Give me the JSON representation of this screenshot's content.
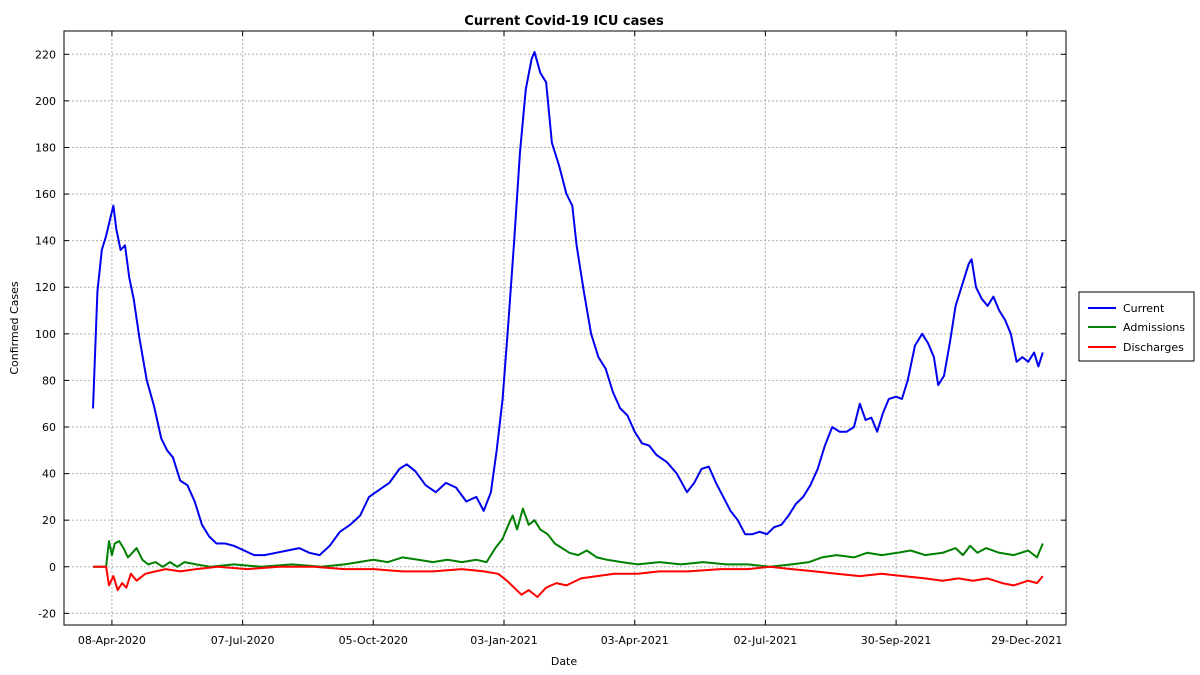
{
  "chart_data": {
    "type": "line",
    "title": "Current Covid-19 ICU cases",
    "xlabel": "Date",
    "ylabel": "Confirmed Cases",
    "x_axis": "date",
    "xlim": [
      "2020-03-06",
      "2022-01-25"
    ],
    "ylim": [
      -25,
      230
    ],
    "yticks": [
      -20,
      0,
      20,
      40,
      60,
      80,
      100,
      120,
      140,
      160,
      180,
      200,
      220
    ],
    "xticks": [
      {
        "date": "2020-04-08",
        "label": "08-Apr-2020"
      },
      {
        "date": "2020-07-07",
        "label": "07-Jul-2020"
      },
      {
        "date": "2020-10-05",
        "label": "05-Oct-2020"
      },
      {
        "date": "2021-01-03",
        "label": "03-Jan-2021"
      },
      {
        "date": "2021-04-03",
        "label": "03-Apr-2021"
      },
      {
        "date": "2021-07-02",
        "label": "02-Jul-2021"
      },
      {
        "date": "2021-09-30",
        "label": "30-Sep-2021"
      },
      {
        "date": "2021-12-29",
        "label": "29-Dec-2021"
      }
    ],
    "grid": true,
    "legend_position": "right",
    "series": [
      {
        "name": "Current",
        "color": "#0000ee",
        "points": [
          [
            "2020-03-26",
            68
          ],
          [
            "2020-03-29",
            118
          ],
          [
            "2020-04-01",
            136
          ],
          [
            "2020-04-04",
            142
          ],
          [
            "2020-04-07",
            150
          ],
          [
            "2020-04-09",
            155
          ],
          [
            "2020-04-11",
            145
          ],
          [
            "2020-04-14",
            136
          ],
          [
            "2020-04-17",
            138
          ],
          [
            "2020-04-20",
            124
          ],
          [
            "2020-04-23",
            115
          ],
          [
            "2020-04-27",
            98
          ],
          [
            "2020-05-02",
            80
          ],
          [
            "2020-05-07",
            69
          ],
          [
            "2020-05-12",
            55
          ],
          [
            "2020-05-16",
            50
          ],
          [
            "2020-05-20",
            47
          ],
          [
            "2020-05-25",
            37
          ],
          [
            "2020-05-30",
            35
          ],
          [
            "2020-06-04",
            28
          ],
          [
            "2020-06-09",
            18
          ],
          [
            "2020-06-14",
            13
          ],
          [
            "2020-06-19",
            10
          ],
          [
            "2020-06-25",
            10
          ],
          [
            "2020-07-01",
            9
          ],
          [
            "2020-07-08",
            7
          ],
          [
            "2020-07-15",
            5
          ],
          [
            "2020-07-22",
            5
          ],
          [
            "2020-07-30",
            6
          ],
          [
            "2020-08-07",
            7
          ],
          [
            "2020-08-15",
            8
          ],
          [
            "2020-08-22",
            6
          ],
          [
            "2020-08-29",
            5
          ],
          [
            "2020-09-05",
            9
          ],
          [
            "2020-09-12",
            15
          ],
          [
            "2020-09-19",
            18
          ],
          [
            "2020-09-26",
            22
          ],
          [
            "2020-10-02",
            30
          ],
          [
            "2020-10-09",
            33
          ],
          [
            "2020-10-16",
            36
          ],
          [
            "2020-10-23",
            42
          ],
          [
            "2020-10-28",
            44
          ],
          [
            "2020-11-03",
            41
          ],
          [
            "2020-11-10",
            35
          ],
          [
            "2020-11-17",
            32
          ],
          [
            "2020-11-24",
            36
          ],
          [
            "2020-12-01",
            34
          ],
          [
            "2020-12-08",
            28
          ],
          [
            "2020-12-15",
            30
          ],
          [
            "2020-12-20",
            24
          ],
          [
            "2020-12-25",
            32
          ],
          [
            "2020-12-29",
            50
          ],
          [
            "2021-01-02",
            72
          ],
          [
            "2021-01-06",
            105
          ],
          [
            "2021-01-10",
            140
          ],
          [
            "2021-01-14",
            178
          ],
          [
            "2021-01-18",
            205
          ],
          [
            "2021-01-22",
            218
          ],
          [
            "2021-01-24",
            221
          ],
          [
            "2021-01-28",
            212
          ],
          [
            "2021-02-01",
            208
          ],
          [
            "2021-02-05",
            182
          ],
          [
            "2021-02-10",
            172
          ],
          [
            "2021-02-15",
            160
          ],
          [
            "2021-02-19",
            155
          ],
          [
            "2021-02-22",
            138
          ],
          [
            "2021-02-27",
            118
          ],
          [
            "2021-03-04",
            100
          ],
          [
            "2021-03-09",
            90
          ],
          [
            "2021-03-14",
            85
          ],
          [
            "2021-03-19",
            75
          ],
          [
            "2021-03-24",
            68
          ],
          [
            "2021-03-29",
            65
          ],
          [
            "2021-04-03",
            58
          ],
          [
            "2021-04-08",
            53
          ],
          [
            "2021-04-13",
            52
          ],
          [
            "2021-04-18",
            48
          ],
          [
            "2021-04-25",
            45
          ],
          [
            "2021-05-02",
            40
          ],
          [
            "2021-05-09",
            32
          ],
          [
            "2021-05-14",
            36
          ],
          [
            "2021-05-19",
            42
          ],
          [
            "2021-05-24",
            43
          ],
          [
            "2021-05-29",
            36
          ],
          [
            "2021-06-03",
            30
          ],
          [
            "2021-06-08",
            24
          ],
          [
            "2021-06-13",
            20
          ],
          [
            "2021-06-18",
            14
          ],
          [
            "2021-06-23",
            14
          ],
          [
            "2021-06-28",
            15
          ],
          [
            "2021-07-03",
            14
          ],
          [
            "2021-07-08",
            17
          ],
          [
            "2021-07-13",
            18
          ],
          [
            "2021-07-18",
            22
          ],
          [
            "2021-07-23",
            27
          ],
          [
            "2021-07-28",
            30
          ],
          [
            "2021-08-02",
            35
          ],
          [
            "2021-08-07",
            42
          ],
          [
            "2021-08-12",
            52
          ],
          [
            "2021-08-17",
            60
          ],
          [
            "2021-08-22",
            58
          ],
          [
            "2021-08-27",
            58
          ],
          [
            "2021-09-01",
            60
          ],
          [
            "2021-09-05",
            70
          ],
          [
            "2021-09-09",
            63
          ],
          [
            "2021-09-13",
            64
          ],
          [
            "2021-09-17",
            58
          ],
          [
            "2021-09-21",
            66
          ],
          [
            "2021-09-25",
            72
          ],
          [
            "2021-09-30",
            73
          ],
          [
            "2021-10-04",
            72
          ],
          [
            "2021-10-08",
            80
          ],
          [
            "2021-10-13",
            95
          ],
          [
            "2021-10-18",
            100
          ],
          [
            "2021-10-22",
            96
          ],
          [
            "2021-10-26",
            90
          ],
          [
            "2021-10-29",
            78
          ],
          [
            "2021-11-02",
            82
          ],
          [
            "2021-11-06",
            96
          ],
          [
            "2021-11-10",
            112
          ],
          [
            "2021-11-15",
            122
          ],
          [
            "2021-11-19",
            130
          ],
          [
            "2021-11-21",
            132
          ],
          [
            "2021-11-24",
            120
          ],
          [
            "2021-11-28",
            115
          ],
          [
            "2021-12-02",
            112
          ],
          [
            "2021-12-06",
            116
          ],
          [
            "2021-12-10",
            110
          ],
          [
            "2021-12-14",
            106
          ],
          [
            "2021-12-18",
            100
          ],
          [
            "2021-12-22",
            88
          ],
          [
            "2021-12-26",
            90
          ],
          [
            "2021-12-30",
            88
          ],
          [
            "2022-01-03",
            92
          ],
          [
            "2022-01-06",
            86
          ],
          [
            "2022-01-09",
            92
          ]
        ]
      },
      {
        "name": "Admissions",
        "color": "#008000",
        "points": [
          [
            "2020-03-26",
            0
          ],
          [
            "2020-04-04",
            0
          ],
          [
            "2020-04-06",
            11
          ],
          [
            "2020-04-08",
            5
          ],
          [
            "2020-04-10",
            10
          ],
          [
            "2020-04-13",
            11
          ],
          [
            "2020-04-16",
            8
          ],
          [
            "2020-04-19",
            4
          ],
          [
            "2020-04-22",
            6
          ],
          [
            "2020-04-25",
            8
          ],
          [
            "2020-04-29",
            3
          ],
          [
            "2020-05-03",
            1
          ],
          [
            "2020-05-08",
            2
          ],
          [
            "2020-05-13",
            0
          ],
          [
            "2020-05-18",
            2
          ],
          [
            "2020-05-23",
            0
          ],
          [
            "2020-05-28",
            2
          ],
          [
            "2020-06-05",
            1
          ],
          [
            "2020-06-15",
            0
          ],
          [
            "2020-07-01",
            1
          ],
          [
            "2020-07-20",
            0
          ],
          [
            "2020-08-10",
            1
          ],
          [
            "2020-08-30",
            0
          ],
          [
            "2020-09-15",
            1
          ],
          [
            "2020-09-25",
            2
          ],
          [
            "2020-10-05",
            3
          ],
          [
            "2020-10-15",
            2
          ],
          [
            "2020-10-25",
            4
          ],
          [
            "2020-11-05",
            3
          ],
          [
            "2020-11-15",
            2
          ],
          [
            "2020-11-25",
            3
          ],
          [
            "2020-12-05",
            2
          ],
          [
            "2020-12-15",
            3
          ],
          [
            "2020-12-22",
            2
          ],
          [
            "2020-12-28",
            8
          ],
          [
            "2021-01-02",
            12
          ],
          [
            "2021-01-06",
            18
          ],
          [
            "2021-01-09",
            22
          ],
          [
            "2021-01-12",
            16
          ],
          [
            "2021-01-16",
            25
          ],
          [
            "2021-01-20",
            18
          ],
          [
            "2021-01-24",
            20
          ],
          [
            "2021-01-28",
            16
          ],
          [
            "2021-02-02",
            14
          ],
          [
            "2021-02-07",
            10
          ],
          [
            "2021-02-12",
            8
          ],
          [
            "2021-02-17",
            6
          ],
          [
            "2021-02-23",
            5
          ],
          [
            "2021-03-01",
            7
          ],
          [
            "2021-03-08",
            4
          ],
          [
            "2021-03-15",
            3
          ],
          [
            "2021-03-25",
            2
          ],
          [
            "2021-04-05",
            1
          ],
          [
            "2021-04-20",
            2
          ],
          [
            "2021-05-05",
            1
          ],
          [
            "2021-05-20",
            2
          ],
          [
            "2021-06-05",
            1
          ],
          [
            "2021-06-20",
            1
          ],
          [
            "2021-07-05",
            0
          ],
          [
            "2021-07-20",
            1
          ],
          [
            "2021-08-01",
            2
          ],
          [
            "2021-08-10",
            4
          ],
          [
            "2021-08-20",
            5
          ],
          [
            "2021-09-01",
            4
          ],
          [
            "2021-09-10",
            6
          ],
          [
            "2021-09-20",
            5
          ],
          [
            "2021-10-01",
            6
          ],
          [
            "2021-10-10",
            7
          ],
          [
            "2021-10-20",
            5
          ],
          [
            "2021-11-01",
            6
          ],
          [
            "2021-11-10",
            8
          ],
          [
            "2021-11-15",
            5
          ],
          [
            "2021-11-20",
            9
          ],
          [
            "2021-11-25",
            6
          ],
          [
            "2021-12-01",
            8
          ],
          [
            "2021-12-10",
            6
          ],
          [
            "2021-12-20",
            5
          ],
          [
            "2021-12-30",
            7
          ],
          [
            "2022-01-05",
            4
          ],
          [
            "2022-01-09",
            10
          ]
        ]
      },
      {
        "name": "Discharges",
        "color": "#ff0000",
        "points": [
          [
            "2020-03-26",
            0
          ],
          [
            "2020-04-04",
            0
          ],
          [
            "2020-04-06",
            -8
          ],
          [
            "2020-04-09",
            -4
          ],
          [
            "2020-04-12",
            -10
          ],
          [
            "2020-04-15",
            -7
          ],
          [
            "2020-04-18",
            -9
          ],
          [
            "2020-04-21",
            -3
          ],
          [
            "2020-04-25",
            -6
          ],
          [
            "2020-05-01",
            -3
          ],
          [
            "2020-05-08",
            -2
          ],
          [
            "2020-05-15",
            -1
          ],
          [
            "2020-05-25",
            -2
          ],
          [
            "2020-06-05",
            -1
          ],
          [
            "2020-06-20",
            0
          ],
          [
            "2020-07-10",
            -1
          ],
          [
            "2020-08-01",
            0
          ],
          [
            "2020-08-25",
            0
          ],
          [
            "2020-09-15",
            -1
          ],
          [
            "2020-10-05",
            -1
          ],
          [
            "2020-10-25",
            -2
          ],
          [
            "2020-11-15",
            -2
          ],
          [
            "2020-12-05",
            -1
          ],
          [
            "2020-12-20",
            -2
          ],
          [
            "2020-12-30",
            -3
          ],
          [
            "2021-01-05",
            -6
          ],
          [
            "2021-01-10",
            -9
          ],
          [
            "2021-01-15",
            -12
          ],
          [
            "2021-01-20",
            -10
          ],
          [
            "2021-01-26",
            -13
          ],
          [
            "2021-02-01",
            -9
          ],
          [
            "2021-02-08",
            -7
          ],
          [
            "2021-02-15",
            -8
          ],
          [
            "2021-02-25",
            -5
          ],
          [
            "2021-03-08",
            -4
          ],
          [
            "2021-03-20",
            -3
          ],
          [
            "2021-04-05",
            -3
          ],
          [
            "2021-04-20",
            -2
          ],
          [
            "2021-05-10",
            -2
          ],
          [
            "2021-06-01",
            -1
          ],
          [
            "2021-06-20",
            -1
          ],
          [
            "2021-07-05",
            0
          ],
          [
            "2021-07-20",
            -1
          ],
          [
            "2021-08-05",
            -2
          ],
          [
            "2021-08-20",
            -3
          ],
          [
            "2021-09-05",
            -4
          ],
          [
            "2021-09-20",
            -3
          ],
          [
            "2021-10-05",
            -4
          ],
          [
            "2021-10-20",
            -5
          ],
          [
            "2021-11-01",
            -6
          ],
          [
            "2021-11-12",
            -5
          ],
          [
            "2021-11-22",
            -6
          ],
          [
            "2021-12-02",
            -5
          ],
          [
            "2021-12-12",
            -7
          ],
          [
            "2021-12-20",
            -8
          ],
          [
            "2021-12-30",
            -6
          ],
          [
            "2022-01-05",
            -7
          ],
          [
            "2022-01-09",
            -4
          ]
        ]
      }
    ]
  }
}
